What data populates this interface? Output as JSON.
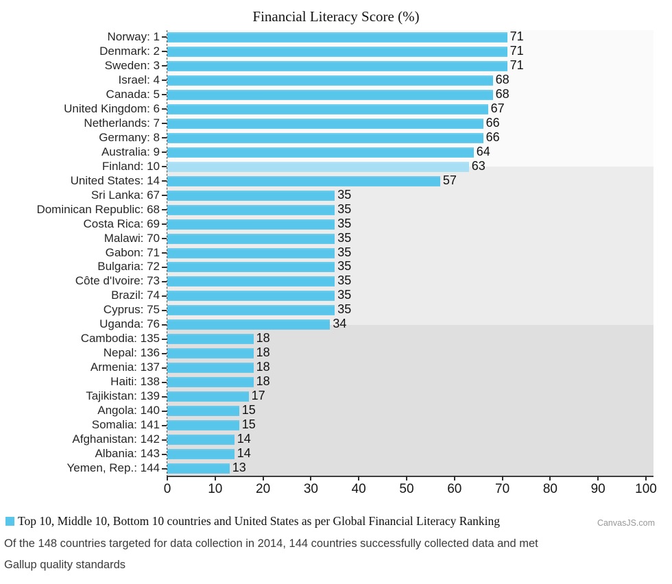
{
  "title": "Financial Literacy Score (%)",
  "watermark": "CanvasJS.com",
  "legend": {
    "label": "Top 10, Middle 10, Bottom 10 countries and United States as per Global Financial Literacy Ranking",
    "marker_color": "#58C5EA"
  },
  "footer": {
    "line1": "Of the 148 countries targeted for data collection in 2014, 144 countries successfully collected data and met",
    "line2": "Gallup quality standards"
  },
  "chart_data": {
    "type": "bar",
    "orientation": "horizontal",
    "title": "Financial Literacy Score (%)",
    "categories": [
      "Norway: 1",
      "Denmark: 2",
      "Sweden: 3",
      "Israel: 4",
      "Canada: 5",
      "United Kingdom: 6",
      "Netherlands: 7",
      "Germany: 8",
      "Australia: 9",
      "Finland: 10",
      "United States: 14",
      "Sri Lanka: 67",
      "Dominican Republic: 68",
      "Costa Rica: 69",
      "Malawi: 70",
      "Gabon: 71",
      "Bulgaria: 72",
      "Côte d'Ivoire: 73",
      "Brazil: 74",
      "Cyprus: 75",
      "Uganda: 76",
      "Cambodia: 135",
      "Nepal: 136",
      "Armenia: 137",
      "Haiti: 138",
      "Tajikistan: 139",
      "Angola: 140",
      "Somalia: 141",
      "Afghanistan: 142",
      "Albania: 143",
      "Yemen, Rep.: 144"
    ],
    "values": [
      71,
      71,
      71,
      68,
      68,
      67,
      66,
      66,
      64,
      63,
      57,
      35,
      35,
      35,
      35,
      35,
      35,
      35,
      35,
      35,
      34,
      18,
      18,
      18,
      18,
      17,
      15,
      15,
      14,
      14,
      13
    ],
    "bar_color": "#58C5EA",
    "highlight_index": 9,
    "highlight_color": "#A8DFF4",
    "xlabel": "",
    "ylabel": "",
    "xlim": [
      0,
      100
    ],
    "x_ticks": [
      0,
      10,
      20,
      30,
      40,
      50,
      60,
      70,
      80,
      90,
      100
    ],
    "grid": false,
    "legend_position": "bottom",
    "bands": [
      {
        "name": "top-10-region",
        "start_row": 0,
        "end_row": 9.5,
        "color": "#FAFAFA"
      },
      {
        "name": "middle-region",
        "start_row": 9.5,
        "end_row": 20.5,
        "color": "#ECECEC"
      },
      {
        "name": "bottom-10-region",
        "start_row": 20.5,
        "end_row": 31,
        "color": "#DFDFDF"
      }
    ]
  }
}
